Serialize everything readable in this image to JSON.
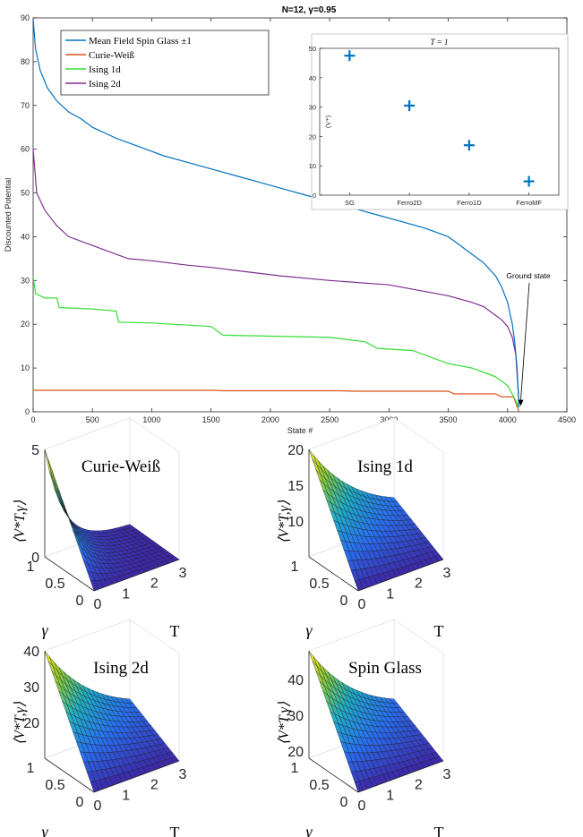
{
  "chart_data": [
    {
      "type": "line",
      "title": "N=12, γ=0.95",
      "xlabel": "State #",
      "ylabel": "Discounted Potential",
      "xlim": [
        0,
        4500
      ],
      "ylim": [
        0,
        90
      ],
      "xticks": [
        0,
        500,
        1000,
        1500,
        2000,
        2500,
        3000,
        3500,
        4000,
        4500
      ],
      "yticks": [
        0,
        10,
        20,
        30,
        40,
        50,
        60,
        70,
        80,
        90
      ],
      "grid": false,
      "legend_position": "top-left",
      "annotation": "Ground state",
      "series": [
        {
          "name": "Mean Field Spin Glass ±1",
          "color": "#0072BD",
          "x": [
            0,
            20,
            60,
            120,
            200,
            300,
            400,
            500,
            700,
            900,
            1100,
            1300,
            1500,
            1700,
            1900,
            2100,
            2300,
            2500,
            2700,
            2900,
            3100,
            3300,
            3500,
            3700,
            3800,
            3900,
            3950,
            4000,
            4040,
            4060,
            4080,
            4096
          ],
          "y": [
            90,
            83,
            78,
            74,
            71,
            68.5,
            67,
            65,
            62.5,
            60.5,
            58.5,
            57,
            55.5,
            54,
            52.5,
            51,
            49.5,
            48,
            46.5,
            45,
            43.5,
            42,
            40,
            36,
            34,
            31,
            28.5,
            25,
            20,
            16,
            10,
            1
          ]
        },
        {
          "name": "Curie-Weiß",
          "color": "#D95319",
          "x": [
            0,
            1500,
            1600,
            2600,
            2700,
            3500,
            3550,
            3900,
            3950,
            4050,
            4070,
            4096
          ],
          "y": [
            4.9,
            4.9,
            4.8,
            4.8,
            4.7,
            4.7,
            4.1,
            4.1,
            3.4,
            3.4,
            2,
            0
          ]
        },
        {
          "name": "Ising 1d",
          "color": "#33DD33",
          "x": [
            0,
            20,
            60,
            100,
            200,
            220,
            500,
            700,
            720,
            1000,
            1500,
            1600,
            2500,
            2800,
            2900,
            3200,
            3500,
            3700,
            3800,
            3900,
            4000,
            4060,
            4096
          ],
          "y": [
            31,
            27,
            26.5,
            26,
            26,
            23.8,
            23.5,
            23,
            20.5,
            20.3,
            19.5,
            17.5,
            17,
            16,
            14.5,
            14,
            11,
            10,
            9,
            8,
            6,
            3,
            1
          ]
        },
        {
          "name": "Ising 2d",
          "color": "#7E2F8E",
          "x": [
            0,
            30,
            100,
            200,
            300,
            500,
            800,
            1000,
            1300,
            1500,
            1800,
            2100,
            2500,
            3000,
            3500,
            3700,
            3800,
            3900,
            3950,
            4000,
            4040,
            4070,
            4096
          ],
          "y": [
            60,
            50,
            46,
            42.5,
            40,
            38,
            35,
            34.5,
            33.5,
            33,
            32,
            31,
            30,
            29,
            26.5,
            25,
            24,
            22,
            21,
            19.5,
            17,
            13,
            2
          ]
        }
      ],
      "inset": {
        "type": "scatter",
        "title": "T = 1",
        "ylabel": "⟨V*⟩",
        "categories": [
          "SG",
          "Ferro2D",
          "Ferro1D",
          "FerroMF"
        ],
        "values": [
          47.5,
          30.5,
          17,
          4.7
        ],
        "ylim": [
          0,
          50
        ],
        "yticks": [
          0,
          10,
          20,
          30,
          40,
          50
        ],
        "marker": "+",
        "color": "#0072BD"
      }
    },
    {
      "type": "surface",
      "title": "Curie-Weiß",
      "xlabel": "T",
      "ylabel": "γ",
      "zlabel": "⟨V*T,γ⟩",
      "xticks": [
        "0",
        "1",
        "2",
        "3"
      ],
      "yticks": [
        "0",
        "0.5",
        "1"
      ],
      "zticks": [
        "0",
        "5"
      ],
      "zlim": [
        0,
        5
      ]
    },
    {
      "type": "surface",
      "title": "Ising 1d",
      "xlabel": "T",
      "ylabel": "γ",
      "zlabel": "⟨V*T,γ⟩",
      "xticks": [
        "0",
        "1",
        "2",
        "3"
      ],
      "yticks": [
        "0",
        "0.5",
        "1"
      ],
      "zticks": [
        "10",
        "15",
        "20"
      ],
      "zlim": [
        5,
        20
      ]
    },
    {
      "type": "surface",
      "title": "Ising 2d",
      "xlabel": "T",
      "ylabel": "γ",
      "zlabel": "⟨V*T,γ⟩",
      "xticks": [
        "0",
        "1",
        "2",
        "3"
      ],
      "yticks": [
        "0",
        "0.5",
        "1"
      ],
      "zticks": [
        "20",
        "30",
        "40"
      ],
      "zlim": [
        10,
        40
      ]
    },
    {
      "type": "surface",
      "title": "Spin Glass",
      "xlabel": "T",
      "ylabel": "γ",
      "zlabel": "⟨V*T,γ⟩",
      "xticks": [
        "0",
        "1",
        "2",
        "3"
      ],
      "yticks": [
        "0",
        "0.5",
        "1"
      ],
      "zticks": [
        "20",
        "30",
        "40"
      ],
      "zlim": [
        18,
        48
      ]
    }
  ]
}
